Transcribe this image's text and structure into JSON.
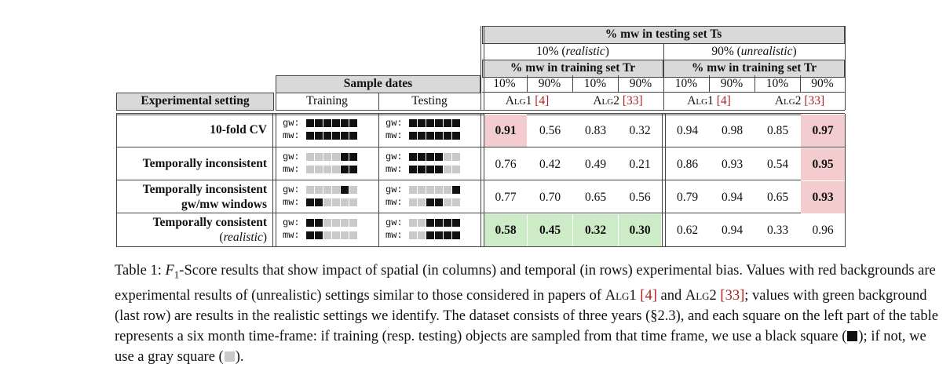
{
  "header": {
    "top": "% mw in testing set Ts",
    "split_realistic": "10% (realistic)",
    "split_unrealistic": "90% (unrealistic)",
    "tr_label": "% mw in training set Tr",
    "sample_dates": "Sample dates",
    "experimental_setting": "Experimental setting",
    "training": "Training",
    "testing": "Testing",
    "pct": [
      "10%",
      "90%",
      "10%",
      "90%",
      "10%",
      "90%",
      "10%",
      "90%"
    ],
    "alg_labels": [
      {
        "name": "Alg1",
        "ref": "[4]"
      },
      {
        "name": "Alg2",
        "ref": "[33]"
      },
      {
        "name": "Alg1",
        "ref": "[4]"
      },
      {
        "name": "Alg2",
        "ref": "[33]"
      }
    ]
  },
  "colors": {
    "header_bg": "#d9d9d9",
    "red_bg": "#f2cccf",
    "green_bg": "#cdebc6",
    "black_square": "#111111",
    "gray_square": "#c9c9c9"
  },
  "rows": [
    {
      "label_lines": [
        "10-fold CV"
      ],
      "training": {
        "gw": [
          1,
          1,
          1,
          1,
          1,
          1
        ],
        "mw": [
          1,
          1,
          1,
          1,
          1,
          1
        ]
      },
      "testing": {
        "gw": [
          1,
          1,
          1,
          1,
          1,
          1
        ],
        "mw": [
          1,
          1,
          1,
          1,
          1,
          1
        ]
      },
      "values": [
        "0.91",
        "0.56",
        "0.83",
        "0.32",
        "0.94",
        "0.98",
        "0.85",
        "0.97"
      ],
      "bold": [
        true,
        false,
        false,
        false,
        false,
        false,
        false,
        true
      ],
      "bg": [
        "red",
        "",
        "",
        "",
        "",
        "",
        "",
        "red"
      ]
    },
    {
      "label_lines": [
        "Temporally inconsistent"
      ],
      "training": {
        "gw": [
          0,
          0,
          0,
          0,
          1,
          1
        ],
        "mw": [
          0,
          0,
          0,
          0,
          1,
          1
        ]
      },
      "testing": {
        "gw": [
          1,
          1,
          1,
          1,
          0,
          0
        ],
        "mw": [
          1,
          1,
          1,
          1,
          0,
          0
        ]
      },
      "values": [
        "0.76",
        "0.42",
        "0.49",
        "0.21",
        "0.86",
        "0.93",
        "0.54",
        "0.95"
      ],
      "bold": [
        false,
        false,
        false,
        false,
        false,
        false,
        false,
        true
      ],
      "bg": [
        "",
        "",
        "",
        "",
        "",
        "",
        "",
        "red"
      ]
    },
    {
      "label_lines": [
        "Temporally inconsistent",
        "gw/mw windows"
      ],
      "training": {
        "gw": [
          0,
          0,
          0,
          0,
          1,
          0
        ],
        "mw": [
          1,
          1,
          0,
          0,
          0,
          0
        ]
      },
      "testing": {
        "gw": [
          0,
          0,
          0,
          0,
          0,
          1
        ],
        "mw": [
          0,
          0,
          1,
          1,
          0,
          0
        ]
      },
      "values": [
        "0.77",
        "0.70",
        "0.65",
        "0.56",
        "0.79",
        "0.94",
        "0.65",
        "0.93"
      ],
      "bold": [
        false,
        false,
        false,
        false,
        false,
        false,
        false,
        true
      ],
      "bg": [
        "",
        "",
        "",
        "",
        "",
        "",
        "",
        "red"
      ]
    },
    {
      "label_lines": [
        "Temporally consistent",
        "(realistic)"
      ],
      "training": {
        "gw": [
          1,
          1,
          0,
          0,
          0,
          0
        ],
        "mw": [
          1,
          1,
          0,
          0,
          0,
          0
        ]
      },
      "testing": {
        "gw": [
          0,
          0,
          1,
          1,
          1,
          1
        ],
        "mw": [
          0,
          0,
          1,
          1,
          1,
          1
        ]
      },
      "values": [
        "0.58",
        "0.45",
        "0.32",
        "0.30",
        "0.62",
        "0.94",
        "0.33",
        "0.96"
      ],
      "bold": [
        true,
        true,
        true,
        true,
        false,
        false,
        false,
        false
      ],
      "bg": [
        "green",
        "green",
        "green",
        "green",
        "",
        "",
        "",
        ""
      ]
    }
  ],
  "caption": {
    "lead": "Table 1: ",
    "f1_symbol": "F",
    "f1_sub": "1",
    "text_1": "-Score results that show impact of spatial (in columns) and temporal (in rows) experimental bias. Values with red backgrounds are experimental results of (unrealistic) settings similar to those considered in papers of ",
    "alg1": "Alg1",
    "ref1": "[4]",
    "text_and": " and ",
    "alg2": "Alg2",
    "ref2": "[33]",
    "text_2": "; values with green background (last row) are results in the realistic settings we identify. The dataset consists of three years (§2.3), and each square on the left part of the table represents a six month time-frame: if training (resp. testing) objects are sampled from that time frame, we use a black square (",
    "text_3": "); if not, we use a gray square (",
    "text_4": ")."
  }
}
